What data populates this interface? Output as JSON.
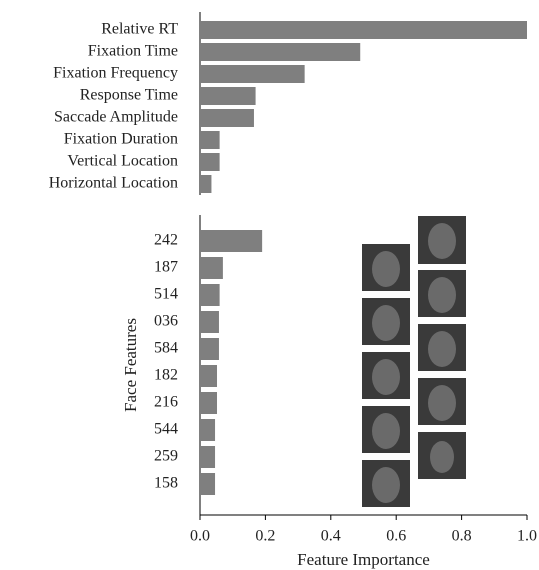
{
  "chart_data": [
    {
      "type": "barh",
      "categories": [
        "Relative RT",
        "Fixation Time",
        "Fixation Frequency",
        "Response Time",
        "Saccade Amplitude",
        "Fixation Duration",
        "Vertical Location",
        "Horizontal Location"
      ],
      "values": [
        1.0,
        0.49,
        0.32,
        0.17,
        0.165,
        0.06,
        0.06,
        0.035
      ],
      "color": "#7f7f7f",
      "xlim": [
        0,
        1.0
      ]
    },
    {
      "type": "barh",
      "categories": [
        "242",
        "187",
        "514",
        "036",
        "584",
        "182",
        "216",
        "544",
        "259",
        "158"
      ],
      "values": [
        0.19,
        0.07,
        0.06,
        0.058,
        0.058,
        0.052,
        0.052,
        0.046,
        0.046,
        0.046
      ],
      "color": "#7f7f7f",
      "xlim": [
        0,
        1.0
      ],
      "xticks": [
        {
          "value": 0,
          "label": "0.0"
        },
        {
          "value": 0.2,
          "label": "0.2"
        },
        {
          "value": 0.4,
          "label": "0.4"
        },
        {
          "value": 0.6,
          "label": "0.6"
        },
        {
          "value": 0.8,
          "label": "0.8"
        },
        {
          "value": 1.0,
          "label": "1.0"
        }
      ],
      "xlabel": "Feature Importance",
      "ylabel": "Face Features"
    }
  ]
}
